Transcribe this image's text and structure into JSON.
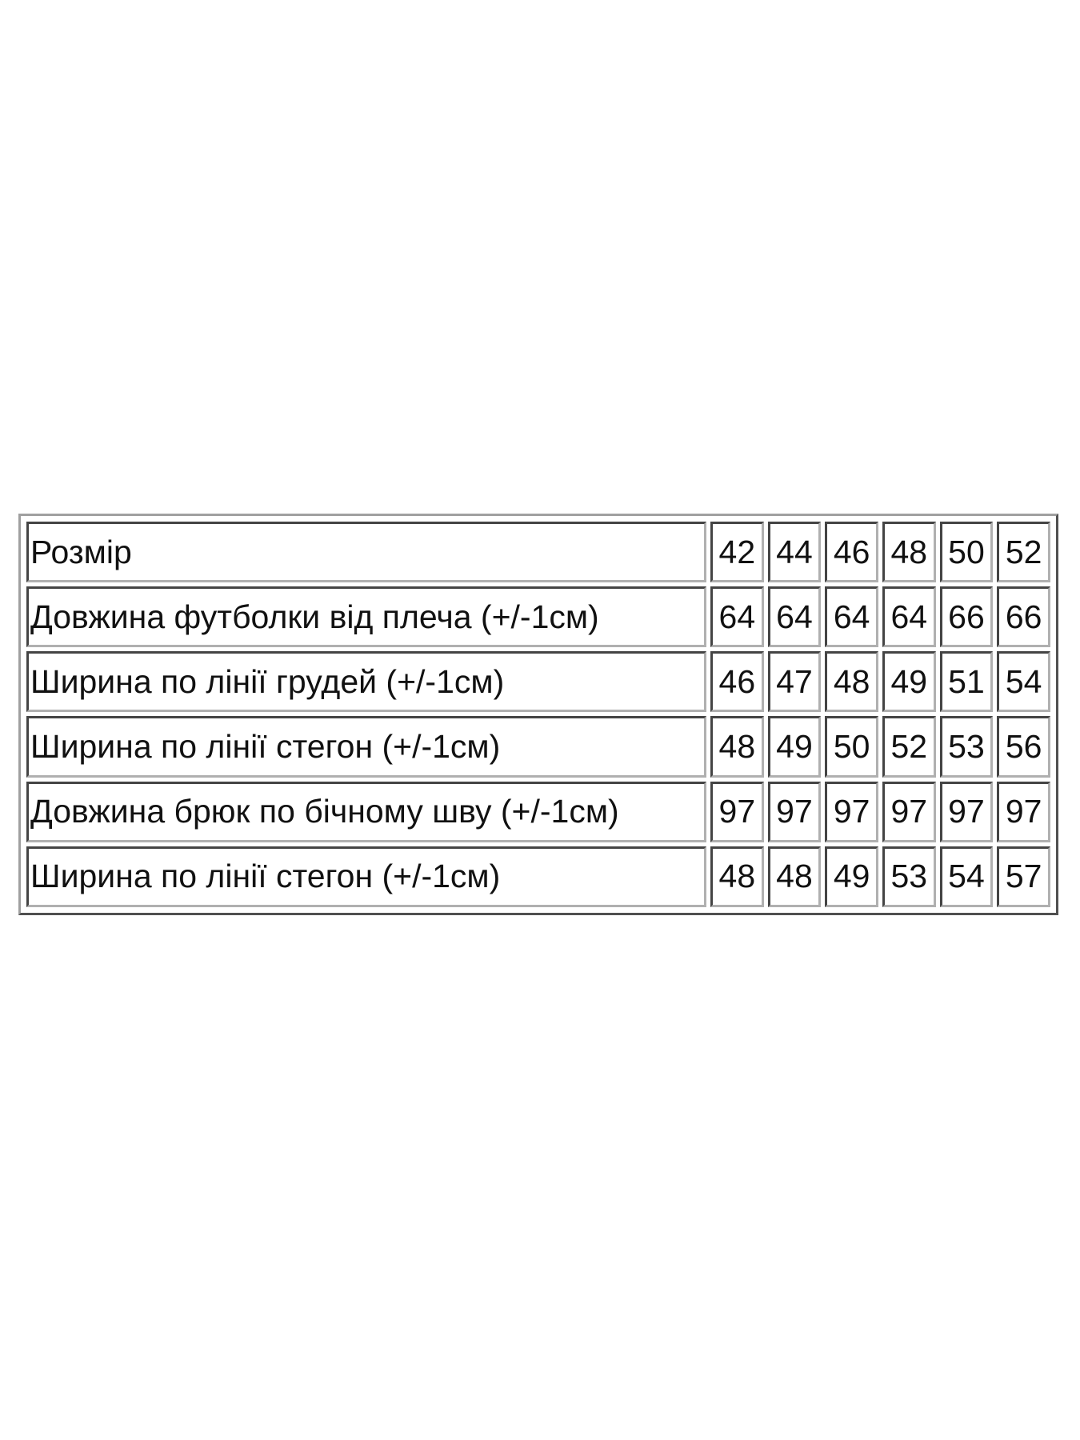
{
  "table": {
    "rows": [
      {
        "label": "Розмір",
        "values": [
          "42",
          "44",
          "46",
          "48",
          "50",
          "52"
        ]
      },
      {
        "label": "Довжина футболки від плеча (+/-1см)",
        "values": [
          "64",
          "64",
          "64",
          "64",
          "66",
          "66"
        ]
      },
      {
        "label": "Ширина по лінії грудей (+/-1см)",
        "values": [
          "46",
          "47",
          "48",
          "49",
          "51",
          "54"
        ]
      },
      {
        "label": "Ширина по лінії стегон (+/-1см)",
        "values": [
          "48",
          "49",
          "50",
          "52",
          "53",
          "56"
        ]
      },
      {
        "label": "Довжина брюк по бічному шву (+/-1см)",
        "values": [
          "97",
          "97",
          "97",
          "97",
          "97",
          "97"
        ]
      },
      {
        "label": "Ширина по лінії стегон (+/-1см)",
        "values": [
          "48",
          "48",
          "49",
          "53",
          "54",
          "57"
        ]
      }
    ]
  }
}
